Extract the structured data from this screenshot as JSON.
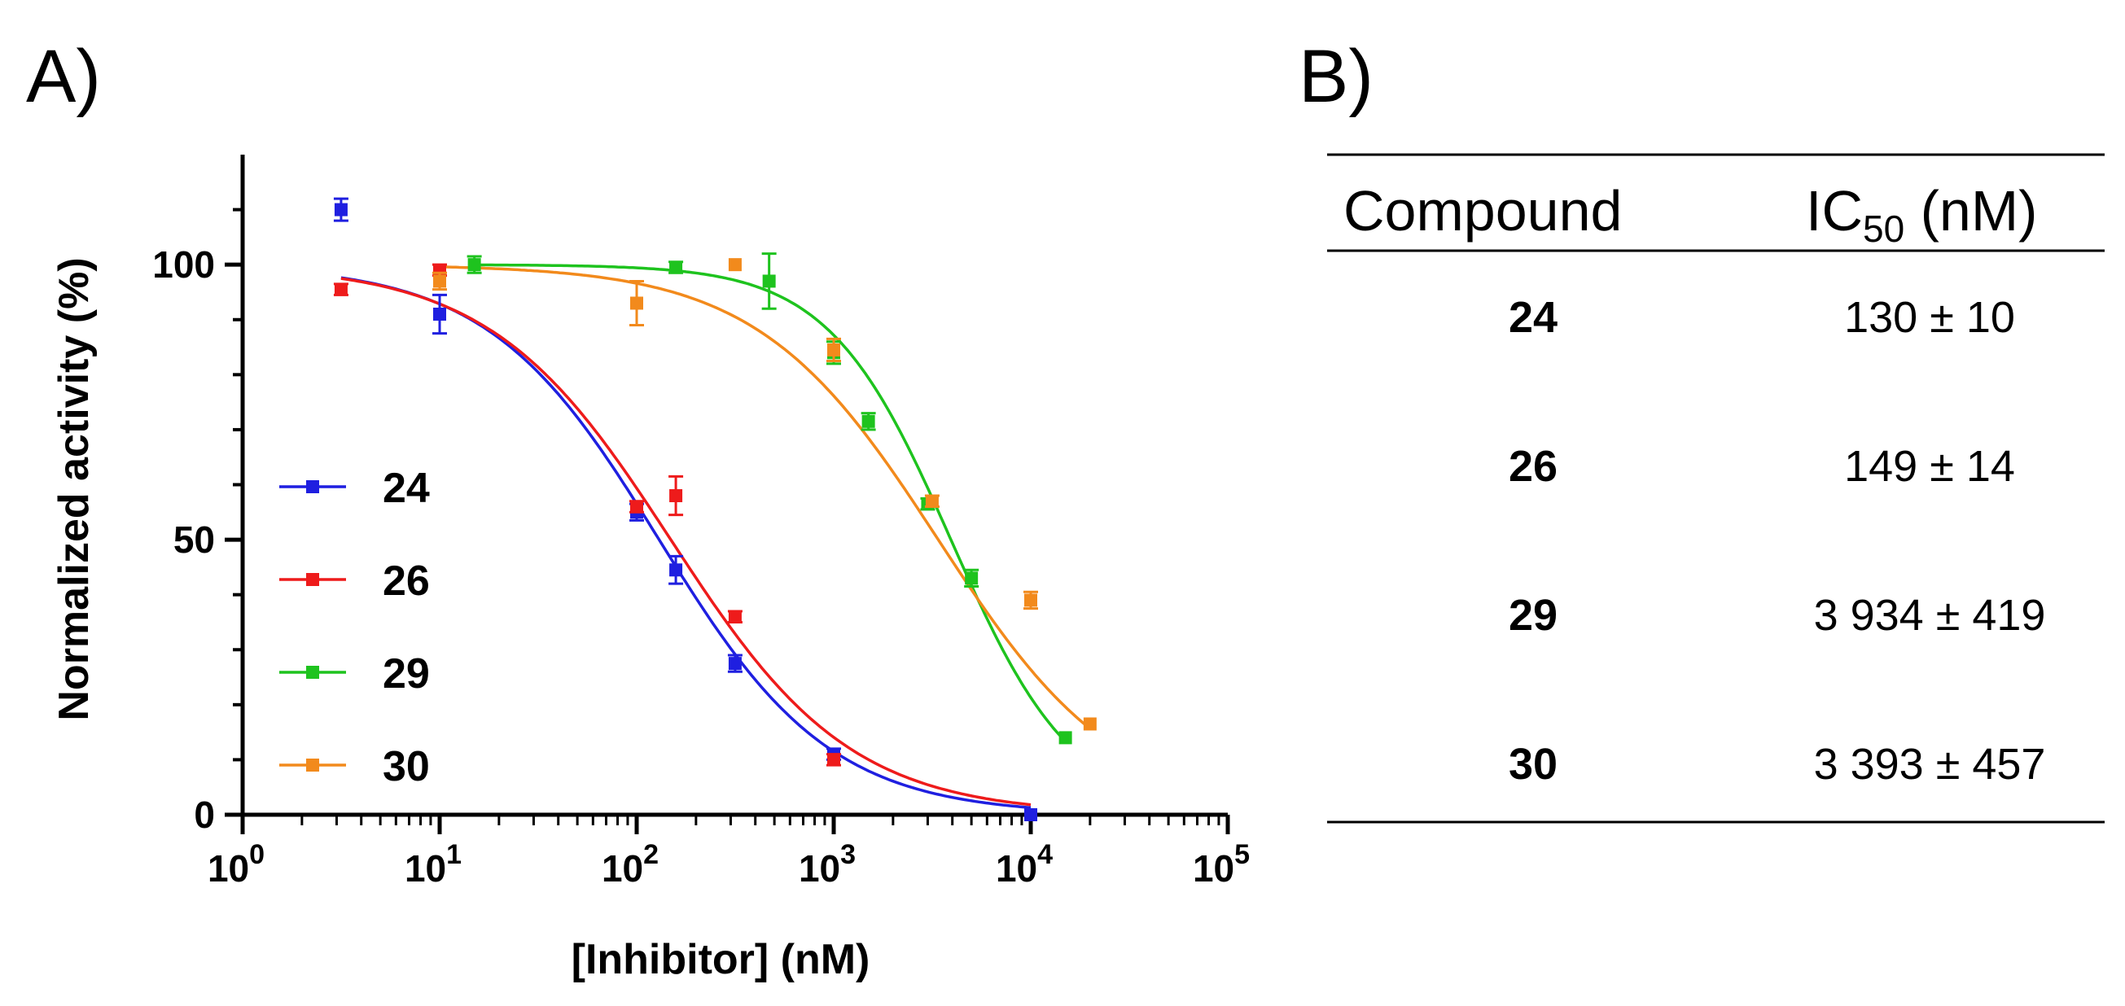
{
  "panel_a_label": "A)",
  "panel_b_label": "B)",
  "chart_data": {
    "type": "scatter",
    "xlabel": "[Inhibitor] (nM)",
    "ylabel": "Normalized activity (%)",
    "xscale": "log",
    "xlim": [
      1,
      100000
    ],
    "ylim": [
      0,
      120
    ],
    "xticks": [
      {
        "value": 1,
        "base": "10",
        "exp": "0"
      },
      {
        "value": 10,
        "base": "10",
        "exp": "1"
      },
      {
        "value": 100,
        "base": "10",
        "exp": "2"
      },
      {
        "value": 1000,
        "base": "10",
        "exp": "3"
      },
      {
        "value": 10000,
        "base": "10",
        "exp": "4"
      },
      {
        "value": 100000,
        "base": "10",
        "exp": "5"
      }
    ],
    "yticks": [
      {
        "value": 0,
        "label": "0"
      },
      {
        "value": 50,
        "label": "50"
      },
      {
        "value": 100,
        "label": "100"
      }
    ],
    "grid": false,
    "legend": "left",
    "series": [
      {
        "name": "24",
        "color": "#1f1fe0",
        "ic50": 130,
        "hill": 1.0,
        "top": 100,
        "fit_range": [
          3.16,
          10000
        ],
        "points": [
          {
            "x": 3.16,
            "y": 110,
            "err": 2
          },
          {
            "x": 10,
            "y": 91,
            "err": 3.5
          },
          {
            "x": 100,
            "y": 55,
            "err": 1.5
          },
          {
            "x": 158,
            "y": 44.5,
            "err": 2.5
          },
          {
            "x": 316,
            "y": 27.5,
            "err": 1.5
          },
          {
            "x": 1000,
            "y": 11,
            "err": 1
          },
          {
            "x": 10000,
            "y": 0,
            "err": 0.5
          }
        ]
      },
      {
        "name": "26",
        "color": "#ee1b1b",
        "ic50": 149,
        "hill": 0.95,
        "top": 100,
        "fit_range": [
          3.16,
          10000
        ],
        "points": [
          {
            "x": 3.16,
            "y": 95.5,
            "err": 1
          },
          {
            "x": 10,
            "y": 99,
            "err": 1
          },
          {
            "x": 100,
            "y": 56,
            "err": 1
          },
          {
            "x": 158,
            "y": 58,
            "err": 3.5
          },
          {
            "x": 316,
            "y": 36,
            "err": 1
          },
          {
            "x": 1000,
            "y": 10,
            "err": 1
          }
        ]
      },
      {
        "name": "29",
        "color": "#1ec31e",
        "ic50": 3934,
        "hill": 1.4,
        "top": 100,
        "fit_range": [
          14,
          15000
        ],
        "points": [
          {
            "x": 15,
            "y": 100,
            "err": 1.5
          },
          {
            "x": 158,
            "y": 99.5,
            "err": 1
          },
          {
            "x": 470,
            "y": 97,
            "err": 5
          },
          {
            "x": 1000,
            "y": 84,
            "err": 2
          },
          {
            "x": 1500,
            "y": 71.5,
            "err": 1.5
          },
          {
            "x": 3000,
            "y": 56.5,
            "err": 1
          },
          {
            "x": 5000,
            "y": 43,
            "err": 1.5
          },
          {
            "x": 15000,
            "y": 14,
            "err": 0.5
          }
        ]
      },
      {
        "name": "30",
        "color": "#f28a1c",
        "ic50": 3393,
        "hill": 0.95,
        "top": 100,
        "fit_range": [
          10,
          20000
        ],
        "points": [
          {
            "x": 10,
            "y": 97,
            "err": 1.5
          },
          {
            "x": 100,
            "y": 93,
            "err": 4
          },
          {
            "x": 316,
            "y": 100,
            "err": 0.5
          },
          {
            "x": 1000,
            "y": 84.5,
            "err": 2
          },
          {
            "x": 3160,
            "y": 57,
            "err": 1
          },
          {
            "x": 10000,
            "y": 39,
            "err": 1.5
          },
          {
            "x": 20000,
            "y": 16.5,
            "err": 0.5
          }
        ]
      }
    ]
  },
  "table": {
    "col_compound": "Compound",
    "col_ic50_main": "IC",
    "col_ic50_sub": "50",
    "col_ic50_unit": " (nM)",
    "rows": [
      {
        "compound": "24",
        "ic50": "130 ± 10"
      },
      {
        "compound": "26",
        "ic50": "149 ± 14"
      },
      {
        "compound": "29",
        "ic50": "3 934 ± 419"
      },
      {
        "compound": "30",
        "ic50": "3 393 ± 457"
      }
    ]
  }
}
